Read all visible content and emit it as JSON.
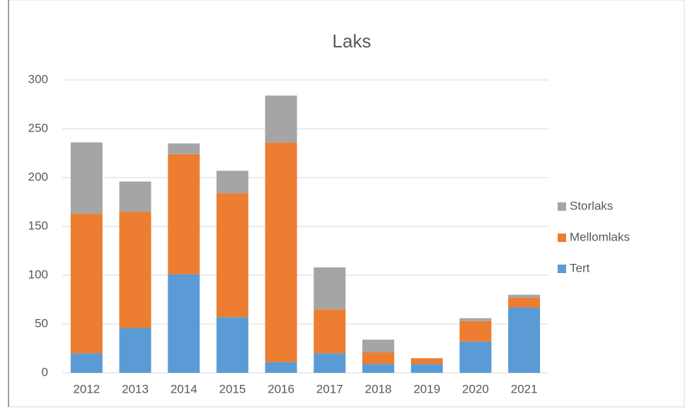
{
  "chart_data": {
    "type": "stacked_bar",
    "title": "Laks",
    "categories": [
      "2012",
      "2013",
      "2014",
      "2015",
      "2016",
      "2017",
      "2018",
      "2019",
      "2020",
      "2021"
    ],
    "series": [
      {
        "name": "Tert",
        "color": "#5b9bd5",
        "values": [
          20,
          46,
          101,
          57,
          11,
          20,
          9,
          9,
          32,
          67
        ]
      },
      {
        "name": "Mellomlaks",
        "color": "#ed7d31",
        "values": [
          143,
          119,
          123,
          127,
          225,
          45,
          12,
          6,
          21,
          10
        ]
      },
      {
        "name": "Storlaks",
        "color": "#a5a5a5",
        "values": [
          73,
          31,
          11,
          23,
          48,
          43,
          13,
          0,
          3,
          3
        ]
      }
    ],
    "ylim": [
      0,
      300
    ],
    "yticks": [
      0,
      50,
      100,
      150,
      200,
      250,
      300
    ],
    "grid": true,
    "legend": "right"
  }
}
